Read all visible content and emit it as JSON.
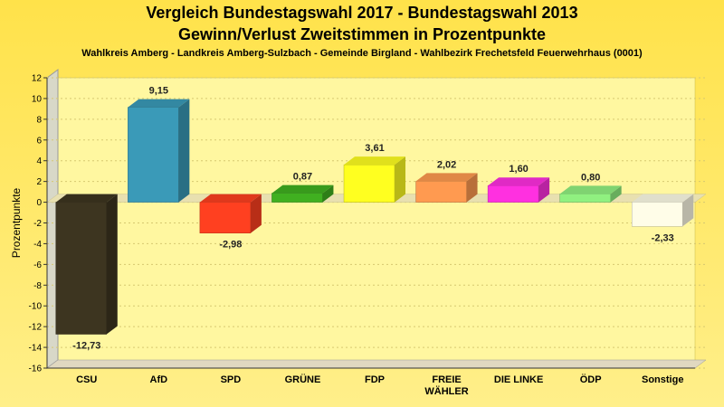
{
  "chart_data": {
    "type": "bar",
    "title": "Vergleich Bundestagswahl 2017 - Bundestagswahl 2013",
    "subtitle": "Gewinn/Verlust Zweitstimmen in Prozentpunkte",
    "caption": "Wahlkreis Amberg - Landkreis Amberg-Sulzbach - Gemeinde Birgland - Wahlbezirk Frechetsfeld Feuerwehrhaus (0001)",
    "ylabel": "Prozentpunkte",
    "ylim": [
      -16,
      12
    ],
    "yticks": [
      "12",
      "10",
      "8",
      "6",
      "4",
      "2",
      "0",
      "-2",
      "-4",
      "-6",
      "-8",
      "-10",
      "-12",
      "-14",
      "-16"
    ],
    "grid": true,
    "categories": [
      "CSU",
      "AfD",
      "SPD",
      "GRÜNE",
      "FDP",
      "FREIE WÄHLER",
      "DIE LINKE",
      "ÖDP",
      "Sonstige"
    ],
    "category_lines": [
      [
        "CSU"
      ],
      [
        "AfD"
      ],
      [
        "SPD"
      ],
      [
        "GRÜNE"
      ],
      [
        "FDP"
      ],
      [
        "FREIE",
        "WÄHLER"
      ],
      [
        "DIE LINKE"
      ],
      [
        "ÖDP"
      ],
      [
        "Sonstige"
      ]
    ],
    "values": [
      -12.73,
      9.15,
      -2.98,
      0.87,
      3.61,
      2.02,
      1.6,
      0.8,
      -2.33
    ],
    "value_labels": [
      "-12,73",
      "9,15",
      "-2,98",
      "0,87",
      "3,61",
      "2,02",
      "1,60",
      "0,80",
      "-2,33"
    ],
    "colors": [
      "#3d3520",
      "#3a9ab8",
      "#ff4020",
      "#40b020",
      "#ffff20",
      "#ff9a50",
      "#ff30e0",
      "#90f080",
      "#fffde8"
    ]
  }
}
